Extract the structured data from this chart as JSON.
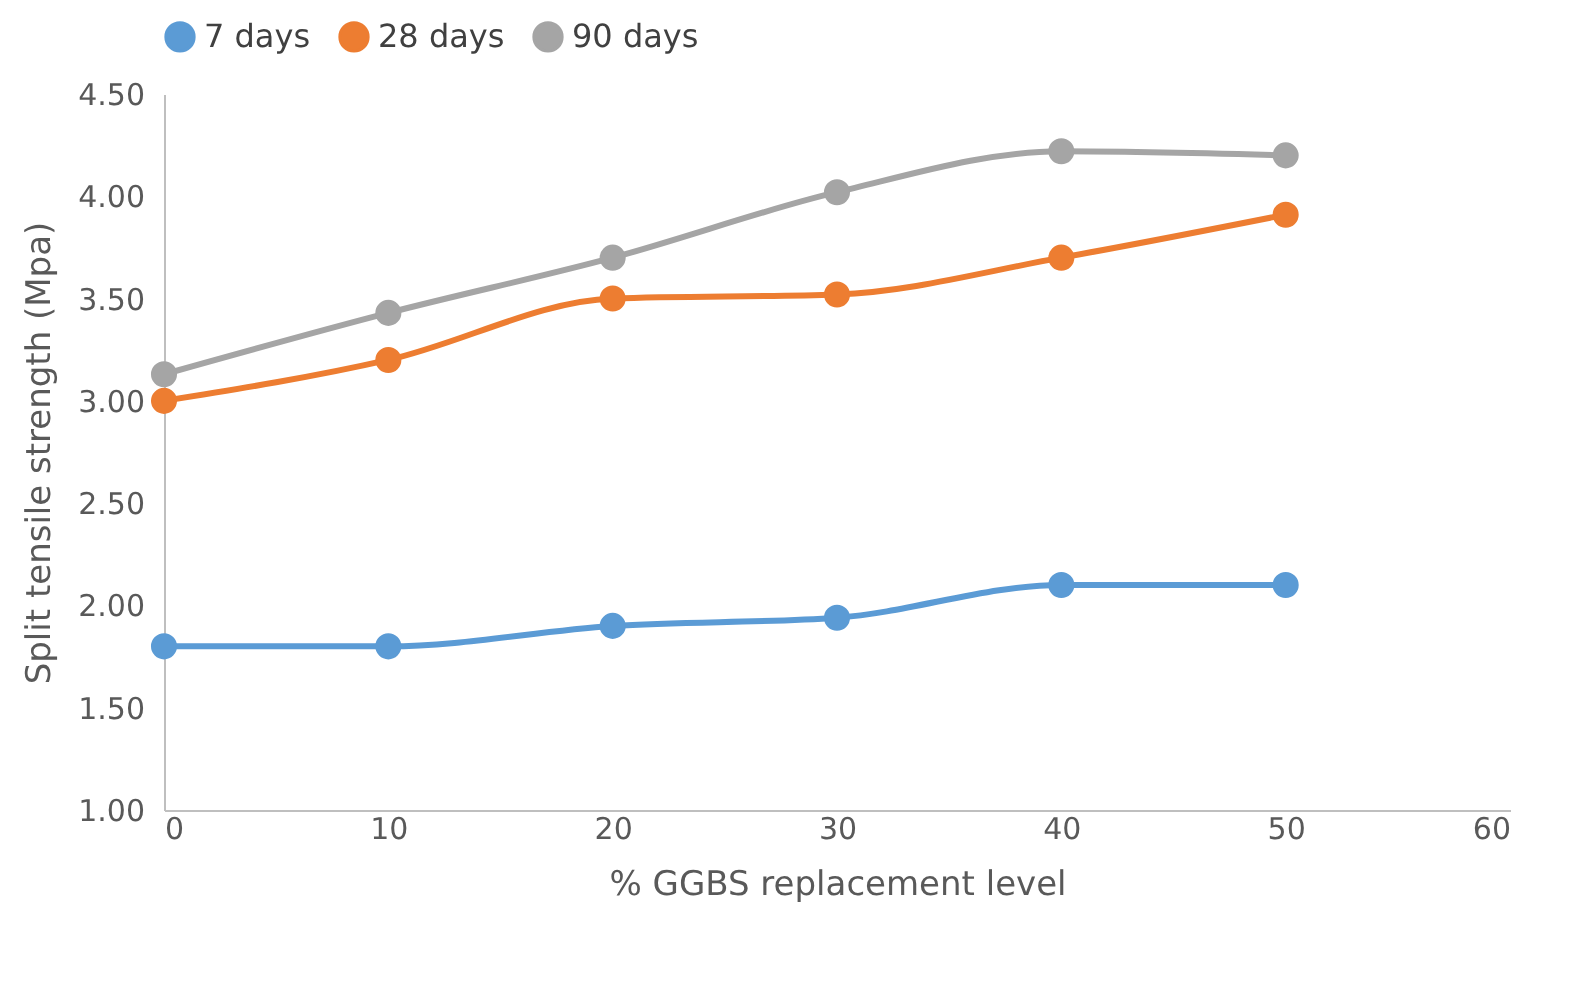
{
  "chart_data": {
    "type": "line",
    "xlabel": "% GGBS replacement level",
    "ylabel": "Split tensile strength (Mpa)",
    "x": [
      0,
      10,
      20,
      30,
      40,
      50
    ],
    "series": [
      {
        "name": "7 days",
        "color": "#5b9bd5",
        "values": [
          1.8,
          1.8,
          1.9,
          1.94,
          2.1,
          2.1
        ]
      },
      {
        "name": "28 days",
        "color": "#ed7d31",
        "values": [
          3.0,
          3.2,
          3.5,
          3.52,
          3.7,
          3.91
        ]
      },
      {
        "name": "90 days",
        "color": "#a5a5a5",
        "values": [
          3.13,
          3.43,
          3.7,
          4.02,
          4.22,
          4.2
        ]
      }
    ],
    "xlim": [
      0,
      60
    ],
    "xticks": [
      0,
      10,
      20,
      30,
      40,
      50,
      60
    ],
    "ylim": [
      1.0,
      4.5
    ],
    "yticks": [
      {
        "value": 1.0,
        "label": "1.00"
      },
      {
        "value": 1.5,
        "label": "1.50"
      },
      {
        "value": 2.0,
        "label": "2.00"
      },
      {
        "value": 2.5,
        "label": "2.50"
      },
      {
        "value": 3.0,
        "label": "3.00"
      },
      {
        "value": 3.5,
        "label": "3.50"
      },
      {
        "value": 4.0,
        "label": "4.00"
      },
      {
        "value": 4.5,
        "label": "4.50"
      }
    ],
    "grid": false,
    "legend": "top",
    "marker": "circle",
    "line_style": "solid"
  }
}
